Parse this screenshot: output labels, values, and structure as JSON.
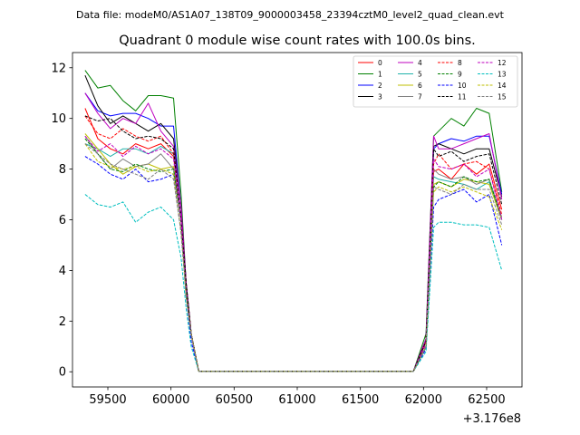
{
  "chart_data": {
    "type": "line",
    "suptitle": "Data file: modeM0/AS1A07_138T09_9000003458_23394cztM0_level2_quad_clean.evt",
    "title": "Quadrant 0 module wise count rates with 100.0s bins.",
    "xlabel": "",
    "ylabel": "",
    "x_offset_label": "+3.176e8",
    "xlim": [
      59220,
      62780
    ],
    "ylim": [
      -0.6,
      12.6
    ],
    "xticks": [
      59500,
      60000,
      60500,
      61000,
      61500,
      62000,
      62500
    ],
    "xtick_labels": [
      "59500",
      "60000",
      "60500",
      "61000",
      "61500",
      "62000",
      "62500"
    ],
    "yticks": [
      0,
      2,
      4,
      6,
      8,
      10,
      12
    ],
    "ytick_labels": [
      "0",
      "2",
      "4",
      "6",
      "8",
      "10",
      "12"
    ],
    "grid": false,
    "legend_position": "top-right",
    "x": [
      59320,
      59420,
      59520,
      59620,
      59720,
      59820,
      59920,
      60020,
      60080,
      60120,
      60160,
      60220,
      60320,
      60420,
      60520,
      60620,
      60720,
      60820,
      60920,
      61020,
      61120,
      61220,
      61320,
      61420,
      61520,
      61620,
      61720,
      61820,
      61920,
      62020,
      62080,
      62120,
      62220,
      62320,
      62420,
      62520,
      62620
    ],
    "series": [
      {
        "name": "0",
        "color": "#ff0000",
        "dash": "solid",
        "values": [
          10.4,
          9.2,
          8.8,
          8.6,
          9.0,
          8.8,
          9.0,
          8.5,
          6.0,
          3.5,
          1.5,
          0.02,
          0.02,
          0.02,
          0.02,
          0.02,
          0.02,
          0.02,
          0.02,
          0.02,
          0.02,
          0.02,
          0.02,
          0.02,
          0.02,
          0.02,
          0.02,
          0.02,
          0.02,
          1.2,
          7.9,
          8.0,
          7.6,
          8.2,
          7.8,
          8.2,
          6.4
        ]
      },
      {
        "name": "1",
        "color": "#008000",
        "dash": "solid",
        "values": [
          11.9,
          11.2,
          11.3,
          10.7,
          10.3,
          10.9,
          10.9,
          10.8,
          7.0,
          3.5,
          1.5,
          0.02,
          0.02,
          0.02,
          0.02,
          0.02,
          0.02,
          0.02,
          0.02,
          0.02,
          0.02,
          0.02,
          0.02,
          0.02,
          0.02,
          0.02,
          0.02,
          0.02,
          0.02,
          1.5,
          9.3,
          9.5,
          10.0,
          9.7,
          10.4,
          10.2,
          7.1
        ]
      },
      {
        "name": "2",
        "color": "#0000ff",
        "dash": "solid",
        "values": [
          11.0,
          10.3,
          10.1,
          10.2,
          10.2,
          10.0,
          9.7,
          9.7,
          6.5,
          3.5,
          1.5,
          0.02,
          0.02,
          0.02,
          0.02,
          0.02,
          0.02,
          0.02,
          0.02,
          0.02,
          0.02,
          0.02,
          0.02,
          0.02,
          0.02,
          0.02,
          0.02,
          0.02,
          0.02,
          1.3,
          8.8,
          9.0,
          9.2,
          9.1,
          9.3,
          9.3,
          7.0
        ]
      },
      {
        "name": "3",
        "color": "#000000",
        "dash": "solid",
        "values": [
          11.7,
          10.5,
          9.8,
          10.1,
          9.8,
          9.5,
          9.8,
          9.2,
          6.5,
          3.5,
          1.5,
          0.02,
          0.02,
          0.02,
          0.02,
          0.02,
          0.02,
          0.02,
          0.02,
          0.02,
          0.02,
          0.02,
          0.02,
          0.02,
          0.02,
          0.02,
          0.02,
          0.02,
          0.02,
          1.3,
          8.9,
          9.0,
          8.8,
          8.6,
          8.8,
          8.8,
          6.9
        ]
      },
      {
        "name": "4",
        "color": "#bf00bf",
        "dash": "solid",
        "values": [
          11.0,
          10.2,
          9.6,
          10.0,
          9.8,
          10.6,
          9.5,
          8.9,
          6.5,
          3.5,
          1.5,
          0.02,
          0.02,
          0.02,
          0.02,
          0.02,
          0.02,
          0.02,
          0.02,
          0.02,
          0.02,
          0.02,
          0.02,
          0.02,
          0.02,
          0.02,
          0.02,
          0.02,
          0.02,
          1.3,
          9.3,
          8.8,
          8.8,
          9.0,
          9.2,
          9.4,
          6.8
        ]
      },
      {
        "name": "5",
        "color": "#20b2aa",
        "dash": "solid",
        "values": [
          9.0,
          8.8,
          8.5,
          8.8,
          8.8,
          8.6,
          8.9,
          8.6,
          6.0,
          3.0,
          1.5,
          0.02,
          0.02,
          0.02,
          0.02,
          0.02,
          0.02,
          0.02,
          0.02,
          0.02,
          0.02,
          0.02,
          0.02,
          0.02,
          0.02,
          0.02,
          0.02,
          0.02,
          0.02,
          1.0,
          7.7,
          7.6,
          7.5,
          7.4,
          7.2,
          7.5,
          6.0
        ]
      },
      {
        "name": "6",
        "color": "#bfbf00",
        "dash": "solid",
        "values": [
          9.4,
          8.8,
          8.2,
          7.8,
          8.1,
          8.2,
          8.0,
          8.1,
          6.0,
          3.0,
          1.5,
          0.02,
          0.02,
          0.02,
          0.02,
          0.02,
          0.02,
          0.02,
          0.02,
          0.02,
          0.02,
          0.02,
          0.02,
          0.02,
          0.02,
          0.02,
          0.02,
          0.02,
          0.02,
          1.0,
          7.4,
          7.5,
          7.3,
          7.6,
          7.5,
          7.4,
          6.0
        ]
      },
      {
        "name": "7",
        "color": "#808080",
        "dash": "solid",
        "values": [
          9.3,
          8.6,
          8.0,
          8.4,
          8.1,
          8.2,
          8.6,
          8.0,
          6.0,
          3.0,
          1.5,
          0.02,
          0.02,
          0.02,
          0.02,
          0.02,
          0.02,
          0.02,
          0.02,
          0.02,
          0.02,
          0.02,
          0.02,
          0.02,
          0.02,
          0.02,
          0.02,
          0.02,
          0.02,
          1.0,
          8.0,
          7.8,
          7.6,
          7.7,
          7.4,
          7.6,
          6.1
        ]
      },
      {
        "name": "8",
        "color": "#ff0000",
        "dash": "dashed",
        "values": [
          10.1,
          9.4,
          9.2,
          9.6,
          9.3,
          9.1,
          9.3,
          8.6,
          6.0,
          3.5,
          1.5,
          0.02,
          0.02,
          0.02,
          0.02,
          0.02,
          0.02,
          0.02,
          0.02,
          0.02,
          0.02,
          0.02,
          0.02,
          0.02,
          0.02,
          0.02,
          0.02,
          0.02,
          0.02,
          1.2,
          8.2,
          8.6,
          8.0,
          8.2,
          8.3,
          8.0,
          6.2
        ]
      },
      {
        "name": "9",
        "color": "#008000",
        "dash": "dashed",
        "values": [
          9.2,
          8.6,
          8.0,
          7.9,
          8.2,
          8.0,
          7.9,
          8.0,
          6.0,
          3.0,
          1.5,
          0.02,
          0.02,
          0.02,
          0.02,
          0.02,
          0.02,
          0.02,
          0.02,
          0.02,
          0.02,
          0.02,
          0.02,
          0.02,
          0.02,
          0.02,
          0.02,
          0.02,
          0.02,
          1.0,
          7.3,
          7.5,
          7.3,
          7.7,
          7.5,
          7.6,
          6.0
        ]
      },
      {
        "name": "10",
        "color": "#0000ff",
        "dash": "dashed",
        "values": [
          8.5,
          8.2,
          7.8,
          7.6,
          8.0,
          7.5,
          7.6,
          7.8,
          5.5,
          3.0,
          1.2,
          0.02,
          0.02,
          0.02,
          0.02,
          0.02,
          0.02,
          0.02,
          0.02,
          0.02,
          0.02,
          0.02,
          0.02,
          0.02,
          0.02,
          0.02,
          0.02,
          0.02,
          0.02,
          0.9,
          6.5,
          6.8,
          7.0,
          7.2,
          6.7,
          7.0,
          5.0
        ]
      },
      {
        "name": "11",
        "color": "#000000",
        "dash": "dashed",
        "values": [
          10.1,
          9.9,
          10.0,
          9.5,
          9.2,
          9.3,
          9.2,
          8.8,
          6.0,
          3.5,
          1.5,
          0.02,
          0.02,
          0.02,
          0.02,
          0.02,
          0.02,
          0.02,
          0.02,
          0.02,
          0.02,
          0.02,
          0.02,
          0.02,
          0.02,
          0.02,
          0.02,
          0.02,
          0.02,
          1.2,
          8.8,
          8.5,
          8.7,
          8.3,
          8.5,
          8.6,
          6.6
        ]
      },
      {
        "name": "12",
        "color": "#bf00bf",
        "dash": "dashed",
        "values": [
          9.3,
          8.7,
          9.0,
          8.5,
          8.9,
          8.6,
          8.8,
          8.4,
          6.0,
          3.0,
          1.5,
          0.02,
          0.02,
          0.02,
          0.02,
          0.02,
          0.02,
          0.02,
          0.02,
          0.02,
          0.02,
          0.02,
          0.02,
          0.02,
          0.02,
          0.02,
          0.02,
          0.02,
          0.02,
          1.1,
          8.4,
          8.1,
          8.0,
          8.2,
          7.7,
          8.0,
          6.0
        ]
      },
      {
        "name": "13",
        "color": "#00bfbf",
        "dash": "dashed",
        "values": [
          7.0,
          6.6,
          6.5,
          6.7,
          5.9,
          6.3,
          6.5,
          6.0,
          4.5,
          2.5,
          1.0,
          0.02,
          0.02,
          0.02,
          0.02,
          0.02,
          0.02,
          0.02,
          0.02,
          0.02,
          0.02,
          0.02,
          0.02,
          0.02,
          0.02,
          0.02,
          0.02,
          0.02,
          0.02,
          0.8,
          5.7,
          5.9,
          5.9,
          5.8,
          5.8,
          5.7,
          4.0
        ]
      },
      {
        "name": "14",
        "color": "#bfbf00",
        "dash": "dashed",
        "values": [
          9.0,
          8.3,
          8.1,
          8.0,
          8.1,
          7.9,
          8.0,
          7.8,
          5.5,
          3.0,
          1.5,
          0.02,
          0.02,
          0.02,
          0.02,
          0.02,
          0.02,
          0.02,
          0.02,
          0.02,
          0.02,
          0.02,
          0.02,
          0.02,
          0.02,
          0.02,
          0.02,
          0.02,
          0.02,
          1.0,
          7.1,
          7.3,
          7.1,
          7.3,
          7.1,
          6.9,
          5.6
        ]
      },
      {
        "name": "15",
        "color": "#808080",
        "dash": "dashed",
        "values": [
          9.0,
          8.6,
          8.2,
          8.0,
          7.8,
          7.6,
          8.0,
          7.6,
          5.5,
          3.0,
          1.5,
          0.02,
          0.02,
          0.02,
          0.02,
          0.02,
          0.02,
          0.02,
          0.02,
          0.02,
          0.02,
          0.02,
          0.02,
          0.02,
          0.02,
          0.02,
          0.02,
          0.02,
          0.02,
          1.0,
          7.3,
          7.2,
          7.0,
          7.4,
          7.2,
          7.2,
          5.8
        ]
      }
    ]
  }
}
